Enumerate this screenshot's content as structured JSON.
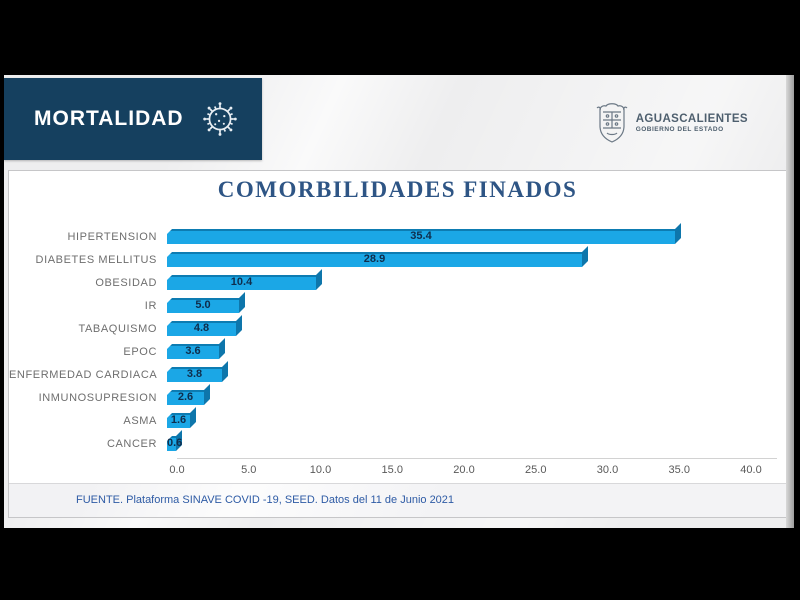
{
  "header": {
    "title": "MORTALIDAD",
    "box_color": "#15405F"
  },
  "logo": {
    "name": "AGUASCALIENTES",
    "subtitle": "GOBIERNO DEL ESTADO"
  },
  "chart_data": {
    "type": "bar",
    "orientation": "horizontal",
    "title": "COMORBILIDADES FINADOS",
    "categories": [
      "HIPERTENSION",
      "DIABETES MELLITUS",
      "OBESIDAD",
      "IR",
      "TABAQUISMO",
      "EPOC",
      "ENFERMEDAD CARDIACA",
      "INMUNOSUPRESION",
      "ASMA",
      "CANCER"
    ],
    "values": [
      35.4,
      28.9,
      10.4,
      5.0,
      4.8,
      3.6,
      3.8,
      2.6,
      1.6,
      0.6
    ],
    "value_labels": [
      "35.4",
      "28.9",
      "10.4",
      "5.0",
      "4.8",
      "3.6",
      "3.8",
      "2.6",
      "1.6",
      "0.6"
    ],
    "xlim": [
      0,
      40
    ],
    "xticks": [
      "0.0",
      "5.0",
      "10.0",
      "15.0",
      "20.0",
      "25.0",
      "30.0",
      "35.0",
      "40.0"
    ],
    "bar_color": "#1BA7E6",
    "bar_shade_color": "#0E76AB",
    "grid": false,
    "legend": false
  },
  "footer": {
    "source": "FUENTE. Plataforma SINAVE COVID -19, SEED. Datos del 11 de Junio 2021"
  }
}
